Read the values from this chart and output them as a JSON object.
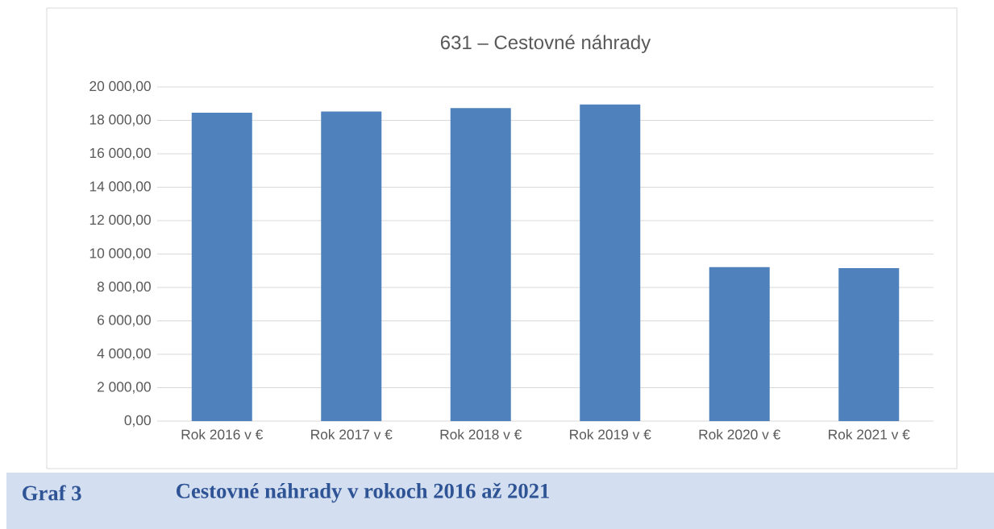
{
  "chart_data": {
    "type": "bar",
    "title": "631 – Cestovné náhrady",
    "categories": [
      "Rok 2016 v €",
      "Rok 2017 v €",
      "Rok 2018 v €",
      "Rok 2019 v €",
      "Rok 2020 v €",
      "Rok 2021 v €"
    ],
    "values": [
      18460,
      18530,
      18730,
      18950,
      9220,
      9160
    ],
    "color": "#4f81bd",
    "ylim": [
      0,
      20000
    ],
    "yticks": [
      {
        "value": 0,
        "label": "0,00"
      },
      {
        "value": 2000,
        "label": "2 000,00"
      },
      {
        "value": 4000,
        "label": "4 000,00"
      },
      {
        "value": 6000,
        "label": "6 000,00"
      },
      {
        "value": 8000,
        "label": "8 000,00"
      },
      {
        "value": 10000,
        "label": "10 000,00"
      },
      {
        "value": 12000,
        "label": "12 000,00"
      },
      {
        "value": 14000,
        "label": "14 000,00"
      },
      {
        "value": 16000,
        "label": "16 000,00"
      },
      {
        "value": 18000,
        "label": "18 000,00"
      },
      {
        "value": 20000,
        "label": "20 000,00"
      }
    ],
    "grid": "y",
    "annotations": [
      "Graf 3",
      "Cestovné náhrady v rokoch 2016 až 2021"
    ]
  }
}
